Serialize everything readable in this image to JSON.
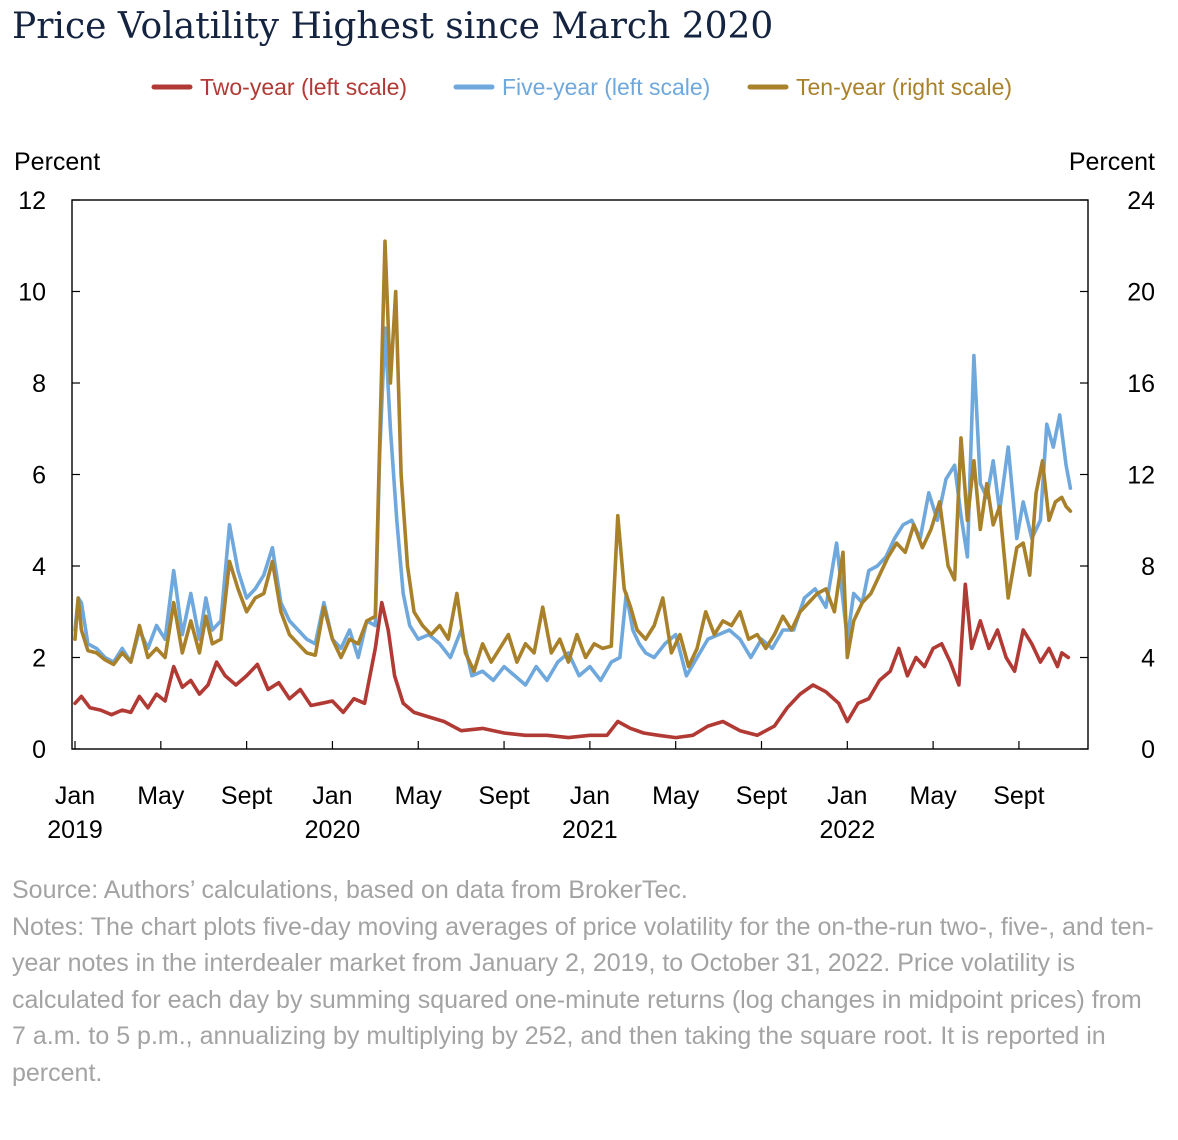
{
  "title": "Price Volatility Highest since March 2020",
  "source": "Source: Authors’ calculations, based on data from BrokerTec.",
  "notes": "Notes: The chart plots five-day moving averages of price volatility for the on-the-run two-, five-, and ten-year notes in the interdealer market from January 2, 2019, to October 31, 2022. Price volatility is calculated for each day by summing squared one-minute returns (log changes in midpoint prices) from 7 a.m. to 5 p.m., annualizing by multiplying by 252, and then taking the square root. It is reported in percent.",
  "colors": {
    "two": "#b23a34",
    "five": "#6fa8dc",
    "ten": "#a9812a",
    "axis": "#000000"
  },
  "chart_data": {
    "type": "line",
    "ylabel_left": "Percent",
    "ylabel_right": "Percent",
    "ylim_left": [
      0,
      12
    ],
    "ylim_right": [
      0,
      24
    ],
    "yticks_left": [
      "0",
      "2",
      "4",
      "6",
      "8",
      "10",
      "12"
    ],
    "yticks_right": [
      "0",
      "4",
      "8",
      "12",
      "16",
      "20",
      "24"
    ],
    "x_unit": "months since Jan 2019",
    "xlim": [
      0,
      46.8
    ],
    "xticks": [
      {
        "x": 0,
        "line1": "Jan",
        "line2": "2019"
      },
      {
        "x": 4,
        "line1": "May",
        "line2": ""
      },
      {
        "x": 8,
        "line1": "Sept",
        "line2": ""
      },
      {
        "x": 12,
        "line1": "Jan",
        "line2": "2020"
      },
      {
        "x": 16,
        "line1": "May",
        "line2": ""
      },
      {
        "x": 20,
        "line1": "Sept",
        "line2": ""
      },
      {
        "x": 24,
        "line1": "Jan",
        "line2": "2021"
      },
      {
        "x": 28,
        "line1": "May",
        "line2": ""
      },
      {
        "x": 32,
        "line1": "Sept",
        "line2": ""
      },
      {
        "x": 36,
        "line1": "Jan",
        "line2": "2022"
      },
      {
        "x": 40,
        "line1": "May",
        "line2": ""
      },
      {
        "x": 44,
        "line1": "Sept",
        "line2": ""
      }
    ],
    "series": [
      {
        "name": "Two-year (left scale)",
        "key": "two",
        "axis": "left",
        "x": [
          0,
          0.3,
          0.7,
          1.2,
          1.7,
          2.2,
          2.6,
          3.0,
          3.4,
          3.8,
          4.2,
          4.6,
          5.0,
          5.4,
          5.8,
          6.2,
          6.6,
          7.0,
          7.5,
          8.0,
          8.5,
          9.0,
          9.5,
          10.0,
          10.5,
          11.0,
          11.5,
          12.0,
          12.5,
          13.0,
          13.5,
          14.0,
          14.3,
          14.6,
          14.9,
          15.3,
          15.8,
          16.5,
          17.2,
          18.0,
          19.0,
          20.0,
          21.0,
          22.0,
          23.0,
          24.0,
          24.8,
          25.3,
          25.9,
          26.5,
          27.2,
          28.0,
          28.8,
          29.5,
          30.2,
          31.0,
          31.8,
          32.6,
          33.2,
          33.8,
          34.4,
          35.0,
          35.6,
          36.0,
          36.5,
          37.0,
          37.5,
          38.0,
          38.4,
          38.8,
          39.2,
          39.6,
          40.0,
          40.4,
          40.8,
          41.2,
          41.5,
          41.8,
          42.2,
          42.6,
          43.0,
          43.4,
          43.8,
          44.2,
          44.6,
          45.0,
          45.4,
          45.8,
          46.0,
          46.3
        ],
        "values": [
          1.0,
          1.15,
          0.9,
          0.85,
          0.75,
          0.85,
          0.8,
          1.15,
          0.9,
          1.2,
          1.05,
          1.8,
          1.35,
          1.5,
          1.2,
          1.4,
          1.9,
          1.6,
          1.4,
          1.6,
          1.85,
          1.3,
          1.45,
          1.1,
          1.3,
          0.95,
          1.0,
          1.05,
          0.8,
          1.1,
          1.0,
          2.2,
          3.2,
          2.6,
          1.6,
          1.0,
          0.8,
          0.7,
          0.6,
          0.4,
          0.45,
          0.35,
          0.3,
          0.3,
          0.25,
          0.3,
          0.3,
          0.6,
          0.45,
          0.35,
          0.3,
          0.25,
          0.3,
          0.5,
          0.6,
          0.4,
          0.3,
          0.5,
          0.9,
          1.2,
          1.4,
          1.25,
          1.0,
          0.6,
          1.0,
          1.1,
          1.5,
          1.7,
          2.2,
          1.6,
          2.0,
          1.8,
          2.2,
          2.3,
          1.9,
          1.4,
          3.6,
          2.2,
          2.8,
          2.2,
          2.6,
          2.0,
          1.7,
          2.6,
          2.3,
          1.9,
          2.2,
          1.8,
          2.1,
          2.0
        ]
      },
      {
        "name": "Five-year (left scale)",
        "key": "five",
        "axis": "left",
        "x": [
          0,
          0.15,
          0.3,
          0.6,
          1.0,
          1.4,
          1.8,
          2.2,
          2.6,
          3.0,
          3.4,
          3.8,
          4.2,
          4.6,
          5.0,
          5.4,
          5.8,
          6.1,
          6.4,
          6.8,
          7.2,
          7.6,
          8.0,
          8.4,
          8.8,
          9.2,
          9.6,
          10.0,
          10.4,
          10.8,
          11.2,
          11.6,
          12.0,
          12.4,
          12.8,
          13.2,
          13.6,
          14.0,
          14.2,
          14.45,
          14.7,
          15.0,
          15.3,
          15.6,
          16.0,
          16.5,
          17.0,
          17.5,
          18.0,
          18.5,
          19.0,
          19.5,
          20.0,
          20.5,
          21.0,
          21.5,
          22.0,
          22.5,
          23.0,
          23.5,
          24.0,
          24.5,
          25.0,
          25.4,
          25.7,
          26.0,
          26.3,
          26.6,
          27.0,
          27.5,
          28.0,
          28.5,
          29.0,
          29.5,
          30.0,
          30.5,
          31.0,
          31.5,
          32.0,
          32.5,
          33.0,
          33.5,
          34.0,
          34.5,
          35.0,
          35.5,
          36.0,
          36.3,
          36.7,
          37.0,
          37.4,
          37.8,
          38.2,
          38.6,
          39.0,
          39.4,
          39.8,
          40.2,
          40.6,
          41.0,
          41.3,
          41.6,
          41.9,
          42.2,
          42.5,
          42.8,
          43.1,
          43.5,
          43.9,
          44.2,
          44.6,
          45.0,
          45.3,
          45.6,
          45.9,
          46.2,
          46.4
        ],
        "values": [
          2.6,
          3.3,
          3.2,
          2.3,
          2.2,
          2.0,
          1.9,
          2.2,
          1.9,
          2.6,
          2.2,
          2.7,
          2.4,
          3.9,
          2.5,
          3.4,
          2.4,
          3.3,
          2.6,
          2.8,
          4.9,
          3.9,
          3.3,
          3.5,
          3.8,
          4.4,
          3.2,
          2.8,
          2.6,
          2.4,
          2.3,
          3.2,
          2.4,
          2.2,
          2.6,
          2.0,
          2.8,
          2.7,
          6.4,
          9.2,
          7.0,
          5.0,
          3.4,
          2.7,
          2.4,
          2.5,
          2.3,
          2.0,
          2.6,
          1.6,
          1.7,
          1.5,
          1.8,
          1.6,
          1.4,
          1.8,
          1.5,
          1.9,
          2.1,
          1.6,
          1.8,
          1.5,
          1.9,
          2.0,
          3.4,
          2.6,
          2.3,
          2.1,
          2.0,
          2.3,
          2.5,
          1.6,
          2.0,
          2.4,
          2.5,
          2.6,
          2.4,
          2.0,
          2.4,
          2.2,
          2.6,
          2.6,
          3.3,
          3.5,
          3.1,
          4.5,
          2.4,
          3.4,
          3.2,
          3.9,
          4.0,
          4.2,
          4.6,
          4.9,
          5.0,
          4.6,
          5.6,
          5.0,
          5.9,
          6.2,
          5.1,
          4.2,
          8.6,
          5.8,
          5.5,
          6.3,
          5.2,
          6.6,
          4.6,
          5.4,
          4.6,
          5.0,
          7.1,
          6.6,
          7.3,
          6.2,
          5.7
        ]
      },
      {
        "name": "Ten-year (right scale)",
        "key": "ten",
        "axis": "right",
        "x": [
          0,
          0.15,
          0.3,
          0.6,
          1.0,
          1.4,
          1.8,
          2.2,
          2.6,
          3.0,
          3.4,
          3.8,
          4.2,
          4.6,
          5.0,
          5.4,
          5.8,
          6.1,
          6.4,
          6.8,
          7.2,
          7.6,
          8.0,
          8.4,
          8.8,
          9.2,
          9.6,
          10.0,
          10.4,
          10.8,
          11.2,
          11.6,
          12.0,
          12.4,
          12.8,
          13.2,
          13.6,
          14.0,
          14.2,
          14.45,
          14.7,
          14.95,
          15.2,
          15.5,
          15.8,
          16.2,
          16.6,
          17.0,
          17.4,
          17.8,
          18.2,
          18.6,
          19.0,
          19.4,
          19.8,
          20.2,
          20.6,
          21.0,
          21.4,
          21.8,
          22.2,
          22.6,
          23.0,
          23.4,
          23.8,
          24.2,
          24.6,
          25.0,
          25.3,
          25.6,
          25.9,
          26.2,
          26.6,
          27.0,
          27.4,
          27.8,
          28.2,
          28.6,
          29.0,
          29.4,
          29.8,
          30.2,
          30.6,
          31.0,
          31.4,
          31.8,
          32.2,
          32.6,
          33.0,
          33.4,
          33.8,
          34.2,
          34.6,
          35.0,
          35.4,
          35.8,
          36.0,
          36.3,
          36.7,
          37.1,
          37.5,
          37.9,
          38.3,
          38.7,
          39.1,
          39.5,
          39.9,
          40.3,
          40.7,
          41.0,
          41.3,
          41.6,
          41.9,
          42.2,
          42.5,
          42.8,
          43.1,
          43.5,
          43.9,
          44.2,
          44.5,
          44.8,
          45.1,
          45.4,
          45.7,
          46.0,
          46.2,
          46.4
        ],
        "values": [
          4.8,
          6.6,
          5.2,
          4.3,
          4.2,
          3.9,
          3.7,
          4.2,
          3.8,
          5.4,
          4.0,
          4.4,
          4.0,
          6.4,
          4.2,
          5.6,
          4.2,
          5.8,
          4.6,
          4.8,
          8.2,
          7.0,
          6.0,
          6.6,
          6.8,
          8.2,
          6.0,
          5.0,
          4.6,
          4.2,
          4.1,
          6.2,
          4.8,
          4.0,
          4.8,
          4.6,
          5.6,
          5.8,
          13.2,
          22.2,
          16.0,
          20.0,
          12.0,
          8.0,
          6.0,
          5.4,
          5.0,
          5.4,
          4.8,
          6.8,
          4.2,
          3.4,
          4.6,
          3.8,
          4.4,
          5.0,
          3.8,
          4.6,
          4.2,
          6.2,
          4.2,
          4.8,
          3.8,
          5.0,
          4.0,
          4.6,
          4.4,
          4.5,
          10.2,
          7.0,
          6.2,
          5.2,
          4.8,
          5.4,
          6.6,
          4.2,
          5.0,
          3.6,
          4.4,
          6.0,
          5.0,
          5.6,
          5.4,
          6.0,
          4.8,
          5.0,
          4.4,
          5.0,
          5.8,
          5.2,
          6.0,
          6.4,
          6.8,
          7.0,
          6.0,
          8.6,
          4.0,
          5.6,
          6.4,
          6.8,
          7.6,
          8.4,
          9.0,
          8.6,
          9.8,
          8.8,
          9.6,
          10.8,
          8.0,
          7.4,
          13.6,
          10.0,
          12.6,
          9.6,
          11.6,
          9.8,
          10.6,
          6.6,
          8.8,
          9.0,
          7.6,
          11.2,
          12.6,
          10.0,
          10.8,
          11.0,
          10.6,
          10.4
        ]
      }
    ]
  }
}
